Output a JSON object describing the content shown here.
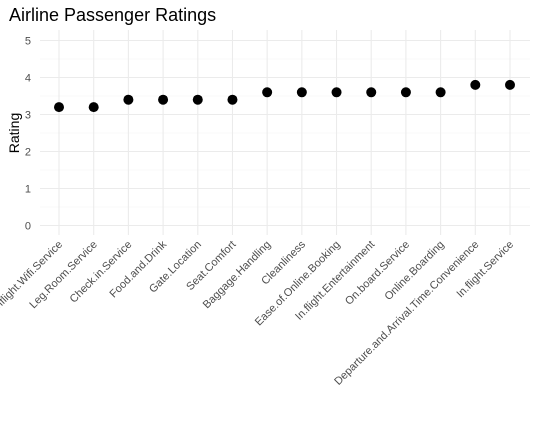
{
  "chart_data": {
    "type": "scatter",
    "title": "Airline Passenger Ratings",
    "xlabel": "",
    "ylabel": "Rating",
    "ylim": [
      0,
      5
    ],
    "yticks": [
      0,
      1,
      2,
      3,
      4,
      5
    ],
    "grid": true,
    "categories": [
      "Inflight.Wifi.Service",
      "Leg.Room.Service",
      "Check.in.Service",
      "Food.and.Drink",
      "Gate.Location",
      "Seat.Comfort",
      "Baggage.Handling",
      "Cleanliness",
      "Ease.of.Online.Booking",
      "In.flight.Entertainment",
      "On.board.Service",
      "Online.Boarding",
      "Departure.and.Arrival.Time.Convenience",
      "In.flight.Service"
    ],
    "values": [
      3.2,
      3.2,
      3.4,
      3.4,
      3.4,
      3.4,
      3.6,
      3.6,
      3.6,
      3.6,
      3.6,
      3.6,
      3.8,
      3.8
    ],
    "colors": {
      "point": "#000000",
      "grid": "#ebebeb"
    }
  }
}
